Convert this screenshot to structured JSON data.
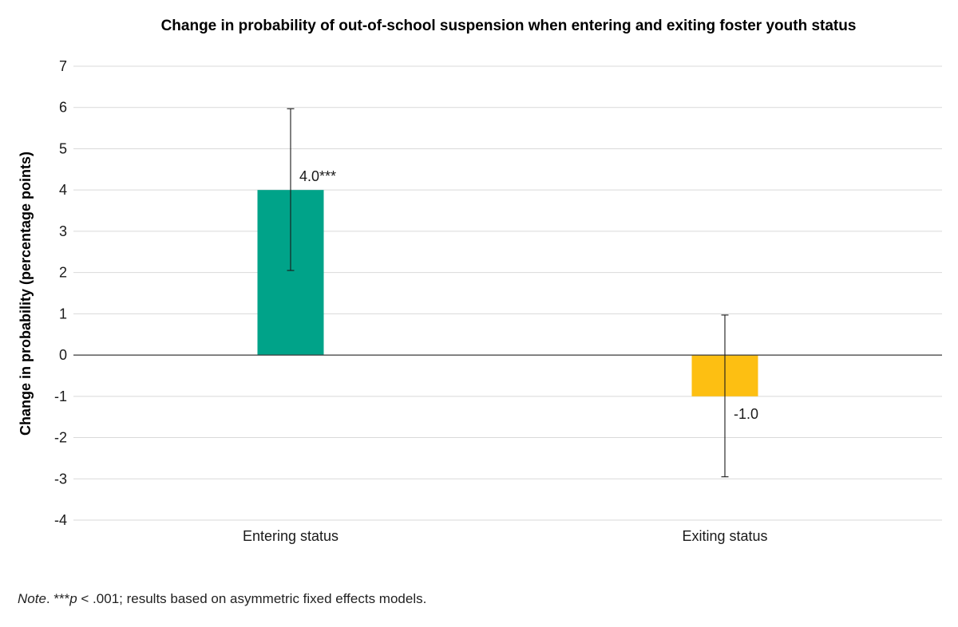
{
  "chart_data": {
    "type": "bar",
    "title": "Change in probability of out-of-school suspension when entering and exiting foster youth status",
    "xlabel": "",
    "ylabel": "Change in probability (percentage points)",
    "ylim": [
      -4,
      7
    ],
    "yticks": [
      7,
      6,
      5,
      4,
      3,
      2,
      1,
      0,
      -1,
      -2,
      -3,
      -4
    ],
    "grid": true,
    "categories": [
      "Entering status",
      "Exiting status"
    ],
    "values": [
      4.0,
      -1.0
    ],
    "error_low": [
      2.05,
      -2.95
    ],
    "error_high": [
      5.97,
      0.97
    ],
    "data_labels": [
      "4.0***",
      "-1.0"
    ],
    "colors": [
      "#00A389",
      "#FDBF12"
    ]
  },
  "note": {
    "prefix": "Note",
    "stars": ". ***",
    "p": "p",
    "rest": " < .001; results based on asymmetric fixed effects models."
  }
}
